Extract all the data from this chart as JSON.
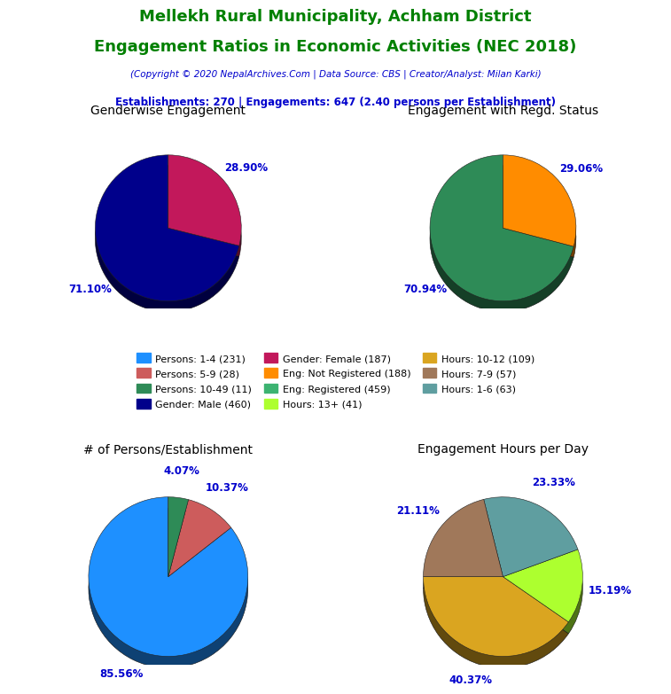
{
  "title_line1": "Mellekh Rural Municipality, Achham District",
  "title_line2": "Engagement Ratios in Economic Activities (NEC 2018)",
  "subtitle": "(Copyright © 2020 NepalArchives.Com | Data Source: CBS | Creator/Analyst: Milan Karki)",
  "establishments_line": "Establishments: 270 | Engagements: 647 (2.40 persons per Establishment)",
  "title_color": "#008000",
  "subtitle_color": "#0000CD",
  "estab_color": "#0000CD",
  "pie1_title": "Genderwise Engagement",
  "pie1_values": [
    71.1,
    28.9
  ],
  "pie1_colors": [
    "#00008B",
    "#C2185B"
  ],
  "pie1_labels": [
    "71.10%",
    "28.90%"
  ],
  "pie1_startangle": 90,
  "pie2_title": "Engagement with Regd. Status",
  "pie2_values": [
    70.94,
    29.06
  ],
  "pie2_colors": [
    "#2E8B57",
    "#FF8C00"
  ],
  "pie2_labels": [
    "70.94%",
    "29.06%"
  ],
  "pie2_startangle": 90,
  "pie3_title": "# of Persons/Establishment",
  "pie3_values": [
    85.56,
    10.37,
    4.07
  ],
  "pie3_colors": [
    "#1E90FF",
    "#CD5C5C",
    "#2E8B57"
  ],
  "pie3_labels": [
    "85.56%",
    "10.37%",
    "4.07%"
  ],
  "pie3_startangle": 90,
  "pie4_title": "Engagement Hours per Day",
  "pie4_values": [
    40.37,
    15.19,
    23.33,
    21.11
  ],
  "pie4_colors": [
    "#DAA520",
    "#ADFF2F",
    "#5F9EA0",
    "#A0785A"
  ],
  "pie4_labels": [
    "40.37%",
    "15.19%",
    "23.33%",
    "21.11%"
  ],
  "pie4_startangle": 180,
  "legend_items": [
    {
      "label": "Persons: 1-4 (231)",
      "color": "#1E90FF"
    },
    {
      "label": "Persons: 5-9 (28)",
      "color": "#CD5C5C"
    },
    {
      "label": "Persons: 10-49 (11)",
      "color": "#2E8B57"
    },
    {
      "label": "Gender: Male (460)",
      "color": "#00008B"
    },
    {
      "label": "Gender: Female (187)",
      "color": "#C2185B"
    },
    {
      "label": "Eng: Not Registered (188)",
      "color": "#FF8C00"
    },
    {
      "label": "Eng: Registered (459)",
      "color": "#3CB371"
    },
    {
      "label": "Hours: 13+ (41)",
      "color": "#ADFF2F"
    },
    {
      "label": "Hours: 10-12 (109)",
      "color": "#DAA520"
    },
    {
      "label": "Hours: 7-9 (57)",
      "color": "#A0785A"
    },
    {
      "label": "Hours: 1-6 (63)",
      "color": "#5F9EA0"
    }
  ],
  "label_color": "#0000CD",
  "background_color": "#FFFFFF"
}
